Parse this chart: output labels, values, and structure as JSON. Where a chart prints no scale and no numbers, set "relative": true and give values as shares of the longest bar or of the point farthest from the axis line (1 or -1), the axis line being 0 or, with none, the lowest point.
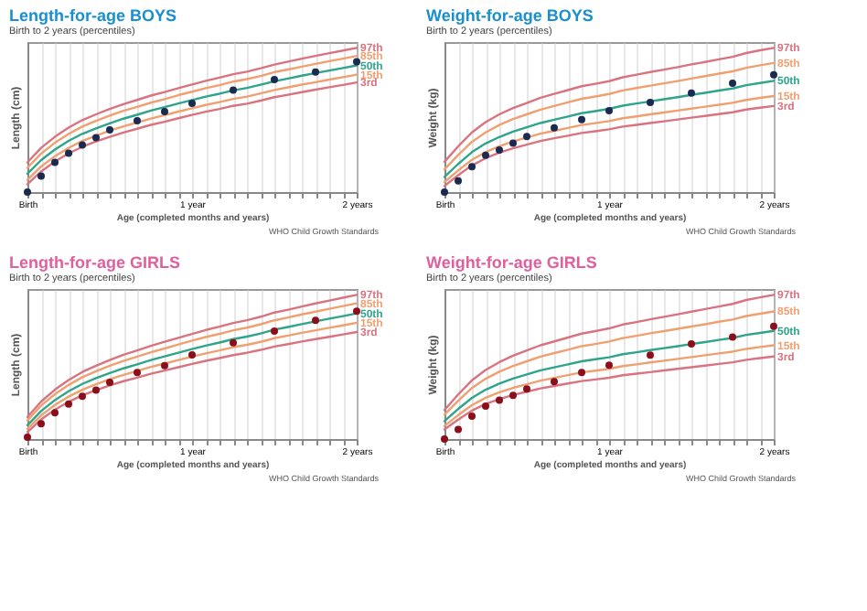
{
  "chart_data": [
    {
      "type": "line",
      "title": "Length-for-age BOYS",
      "subtitle": "Birth to 2 years (percentiles)",
      "xlabel": "Age (completed months and years)",
      "ylabel": "Length (cm)",
      "relative": true,
      "grid": "x",
      "annotations": [
        "WHO Child Growth Standards"
      ],
      "categories": [
        "Birth",
        null,
        null,
        null,
        null,
        null,
        null,
        null,
        null,
        null,
        null,
        null,
        "1 year",
        null,
        null,
        null,
        null,
        null,
        null,
        null,
        null,
        null,
        null,
        null,
        "2 years"
      ],
      "series": [
        {
          "name": "97th",
          "color": "#d9737f",
          "values": [
            0.206,
            0.307,
            0.383,
            0.447,
            0.499,
            0.539,
            0.577,
            0.61,
            0.639,
            0.669,
            0.694,
            0.721,
            0.746,
            0.771,
            0.793,
            0.817,
            0.835,
            0.858,
            0.884,
            0.904,
            0.925,
            0.944,
            0.963,
            0.981,
            1.0
          ]
        },
        {
          "name": "85th",
          "color": "#f0a070",
          "values": [
            0.168,
            0.267,
            0.342,
            0.403,
            0.454,
            0.494,
            0.53,
            0.563,
            0.591,
            0.62,
            0.645,
            0.672,
            0.696,
            0.721,
            0.741,
            0.766,
            0.783,
            0.805,
            0.832,
            0.85,
            0.87,
            0.889,
            0.908,
            0.925,
            0.944
          ]
        },
        {
          "name": "50th",
          "color": "#2ea58a",
          "values": [
            0.127,
            0.222,
            0.295,
            0.355,
            0.404,
            0.442,
            0.477,
            0.509,
            0.536,
            0.565,
            0.589,
            0.614,
            0.638,
            0.662,
            0.682,
            0.705,
            0.722,
            0.744,
            0.768,
            0.787,
            0.807,
            0.825,
            0.843,
            0.86,
            0.878
          ]
        },
        {
          "name": "15th",
          "color": "#f0a070",
          "values": [
            0.085,
            0.178,
            0.248,
            0.306,
            0.354,
            0.391,
            0.425,
            0.456,
            0.482,
            0.51,
            0.533,
            0.558,
            0.581,
            0.604,
            0.624,
            0.646,
            0.662,
            0.684,
            0.708,
            0.726,
            0.745,
            0.762,
            0.78,
            0.797,
            0.814
          ]
        },
        {
          "name": "3rd",
          "color": "#d9737f",
          "values": [
            0.054,
            0.143,
            0.212,
            0.268,
            0.314,
            0.351,
            0.383,
            0.413,
            0.439,
            0.466,
            0.488,
            0.512,
            0.535,
            0.557,
            0.576,
            0.598,
            0.613,
            0.634,
            0.658,
            0.675,
            0.693,
            0.71,
            0.727,
            0.743,
            0.76
          ]
        },
        {
          "type": "scatter",
          "marker": "circle",
          "color": "#1a2a50",
          "values": [
            0,
            0.111,
            0.206,
            0.27,
            0.327,
            0.377,
            0.431,
            null,
            0.494,
            null,
            0.558,
            null,
            0.615,
            null,
            null,
            0.707,
            null,
            null,
            0.78,
            null,
            null,
            0.833,
            null,
            null,
            0.903
          ]
        }
      ]
    },
    {
      "type": "line",
      "title": "Weight-for-age BOYS",
      "subtitle": "Birth to 2 years (percentiles)",
      "xlabel": "Age (completed months and years)",
      "ylabel": "Weight (kg)",
      "relative": true,
      "grid": "x",
      "annotations": [
        "WHO Child Growth Standards"
      ],
      "categories": [
        "Birth",
        null,
        null,
        null,
        null,
        null,
        null,
        null,
        null,
        null,
        null,
        null,
        "1 year",
        null,
        null,
        null,
        null,
        null,
        null,
        null,
        null,
        null,
        null,
        null,
        "2 years"
      ],
      "series": [
        {
          "name": "97th",
          "color": "#d9737f",
          "values": [
            0.21,
            0.317,
            0.414,
            0.485,
            0.539,
            0.583,
            0.618,
            0.654,
            0.681,
            0.707,
            0.734,
            0.751,
            0.769,
            0.796,
            0.814,
            0.832,
            0.849,
            0.866,
            0.885,
            0.902,
            0.92,
            0.938,
            0.964,
            0.983,
            1.0
          ]
        },
        {
          "name": "85th",
          "color": "#f0a070",
          "values": [
            0.158,
            0.258,
            0.348,
            0.414,
            0.465,
            0.506,
            0.539,
            0.572,
            0.597,
            0.622,
            0.647,
            0.663,
            0.68,
            0.705,
            0.721,
            0.738,
            0.754,
            0.77,
            0.787,
            0.804,
            0.821,
            0.837,
            0.862,
            0.879,
            0.895
          ]
        },
        {
          "name": "50th",
          "color": "#2ea58a",
          "values": [
            0.105,
            0.195,
            0.277,
            0.337,
            0.382,
            0.419,
            0.449,
            0.479,
            0.502,
            0.524,
            0.547,
            0.561,
            0.577,
            0.599,
            0.614,
            0.629,
            0.644,
            0.658,
            0.674,
            0.688,
            0.704,
            0.718,
            0.741,
            0.756,
            0.771
          ]
        },
        {
          "name": "15th",
          "color": "#f0a070",
          "values": [
            0.07,
            0.15,
            0.224,
            0.277,
            0.318,
            0.351,
            0.378,
            0.405,
            0.425,
            0.445,
            0.465,
            0.478,
            0.492,
            0.512,
            0.525,
            0.539,
            0.552,
            0.565,
            0.579,
            0.592,
            0.606,
            0.619,
            0.639,
            0.653,
            0.666
          ]
        },
        {
          "name": "3rd",
          "color": "#d9737f",
          "values": [
            0.042,
            0.117,
            0.185,
            0.235,
            0.273,
            0.304,
            0.329,
            0.354,
            0.373,
            0.391,
            0.41,
            0.422,
            0.435,
            0.454,
            0.466,
            0.479,
            0.491,
            0.503,
            0.516,
            0.528,
            0.541,
            0.553,
            0.572,
            0.585,
            0.597
          ]
        },
        {
          "type": "scatter",
          "marker": "circle",
          "color": "#1a2a50",
          "values": [
            0,
            0.077,
            0.176,
            0.256,
            0.291,
            0.34,
            0.386,
            null,
            0.445,
            null,
            0.502,
            null,
            0.565,
            null,
            null,
            0.621,
            null,
            null,
            0.687,
            null,
            null,
            0.755,
            null,
            null,
            0.814
          ]
        }
      ]
    },
    {
      "type": "line",
      "title": "Length-for-age GIRLS",
      "subtitle": "Birth to 2 years (percentiles)",
      "xlabel": "Age (completed months and years)",
      "ylabel": "Length (cm)",
      "relative": true,
      "grid": "x",
      "annotations": [
        "WHO Child Growth Standards"
      ],
      "categories": [
        "Birth",
        null,
        null,
        null,
        null,
        null,
        null,
        null,
        null,
        null,
        null,
        null,
        "1 year",
        null,
        null,
        null,
        null,
        null,
        null,
        null,
        null,
        null,
        null,
        null,
        "2 years"
      ],
      "series": [
        {
          "name": "97th",
          "color": "#d9737f",
          "values": [
            0.152,
            0.26,
            0.342,
            0.409,
            0.465,
            0.508,
            0.548,
            0.584,
            0.614,
            0.646,
            0.674,
            0.702,
            0.729,
            0.756,
            0.779,
            0.805,
            0.824,
            0.848,
            0.877,
            0.897,
            0.919,
            0.94,
            0.96,
            0.98,
            1.0
          ]
        },
        {
          "name": "85th",
          "color": "#f0a070",
          "values": [
            0.129,
            0.232,
            0.311,
            0.375,
            0.429,
            0.47,
            0.508,
            0.542,
            0.572,
            0.602,
            0.628,
            0.656,
            0.682,
            0.707,
            0.729,
            0.754,
            0.772,
            0.796,
            0.823,
            0.843,
            0.864,
            0.883,
            0.903,
            0.922,
            0.941
          ]
        },
        {
          "name": "50th",
          "color": "#2ea58a",
          "values": [
            0.096,
            0.194,
            0.27,
            0.331,
            0.382,
            0.422,
            0.458,
            0.49,
            0.518,
            0.548,
            0.573,
            0.599,
            0.624,
            0.648,
            0.669,
            0.693,
            0.71,
            0.732,
            0.759,
            0.777,
            0.797,
            0.816,
            0.835,
            0.852,
            0.871
          ]
        },
        {
          "name": "15th",
          "color": "#f0a070",
          "values": [
            0.071,
            0.164,
            0.236,
            0.294,
            0.342,
            0.38,
            0.414,
            0.445,
            0.472,
            0.5,
            0.523,
            0.548,
            0.572,
            0.594,
            0.614,
            0.637,
            0.653,
            0.674,
            0.699,
            0.717,
            0.736,
            0.754,
            0.771,
            0.788,
            0.806
          ]
        },
        {
          "name": "3rd",
          "color": "#d9737f",
          "values": [
            0.048,
            0.136,
            0.203,
            0.258,
            0.304,
            0.339,
            0.372,
            0.401,
            0.426,
            0.453,
            0.475,
            0.498,
            0.521,
            0.542,
            0.561,
            0.582,
            0.598,
            0.618,
            0.641,
            0.658,
            0.676,
            0.693,
            0.709,
            0.725,
            0.742
          ]
        },
        {
          "type": "scatter",
          "marker": "circle",
          "color": "#8b0f1a",
          "values": [
            0.013,
            0.107,
            0.183,
            0.242,
            0.297,
            0.339,
            0.393,
            null,
            0.461,
            null,
            0.509,
            null,
            0.584,
            null,
            null,
            0.668,
            null,
            null,
            0.748,
            null,
            null,
            0.823,
            null,
            null,
            0.887
          ]
        }
      ]
    },
    {
      "type": "line",
      "title": "Weight-for-age GIRLS",
      "subtitle": "Birth to 2 years (percentiles)",
      "xlabel": "Age (completed months and years)",
      "ylabel": "Weight (kg)",
      "relative": true,
      "grid": "x",
      "annotations": [
        "WHO Child Growth Standards"
      ],
      "categories": [
        "Birth",
        null,
        null,
        null,
        null,
        null,
        null,
        null,
        null,
        null,
        null,
        null,
        "1 year",
        null,
        null,
        null,
        null,
        null,
        null,
        null,
        null,
        null,
        null,
        null,
        "2 years"
      ],
      "series": [
        {
          "name": "97th",
          "color": "#d9737f",
          "values": [
            0.201,
            0.309,
            0.407,
            0.479,
            0.533,
            0.578,
            0.614,
            0.65,
            0.677,
            0.704,
            0.731,
            0.748,
            0.767,
            0.794,
            0.811,
            0.83,
            0.847,
            0.865,
            0.883,
            0.901,
            0.919,
            0.937,
            0.964,
            0.982,
            1.0
          ]
        },
        {
          "name": "85th",
          "color": "#f0a070",
          "values": [
            0.169,
            0.266,
            0.354,
            0.418,
            0.467,
            0.507,
            0.539,
            0.571,
            0.596,
            0.619,
            0.644,
            0.659,
            0.676,
            0.7,
            0.716,
            0.733,
            0.748,
            0.764,
            0.78,
            0.796,
            0.813,
            0.828,
            0.853,
            0.869,
            0.885
          ]
        },
        {
          "name": "50th",
          "color": "#2ea58a",
          "values": [
            0.124,
            0.209,
            0.285,
            0.342,
            0.384,
            0.419,
            0.448,
            0.476,
            0.497,
            0.518,
            0.539,
            0.553,
            0.567,
            0.588,
            0.602,
            0.617,
            0.63,
            0.644,
            0.659,
            0.672,
            0.687,
            0.701,
            0.722,
            0.736,
            0.75
          ]
        },
        {
          "name": "15th",
          "color": "#f0a070",
          "values": [
            0.091,
            0.166,
            0.235,
            0.286,
            0.324,
            0.355,
            0.38,
            0.405,
            0.424,
            0.443,
            0.462,
            0.474,
            0.487,
            0.506,
            0.518,
            0.531,
            0.543,
            0.556,
            0.568,
            0.581,
            0.594,
            0.606,
            0.625,
            0.638,
            0.65
          ]
        },
        {
          "name": "3rd",
          "color": "#d9737f",
          "values": [
            0.067,
            0.135,
            0.197,
            0.243,
            0.277,
            0.305,
            0.328,
            0.351,
            0.368,
            0.385,
            0.402,
            0.413,
            0.425,
            0.442,
            0.453,
            0.464,
            0.476,
            0.487,
            0.498,
            0.509,
            0.521,
            0.532,
            0.549,
            0.561,
            0.572
          ]
        },
        {
          "type": "scatter",
          "marker": "circle",
          "color": "#8b0f1a",
          "values": [
            0,
            0.067,
            0.158,
            0.229,
            0.269,
            0.303,
            0.347,
            null,
            0.398,
            null,
            0.461,
            null,
            0.512,
            null,
            null,
            0.582,
            null,
            null,
            0.659,
            null,
            null,
            0.707,
            null,
            null,
            0.781
          ]
        }
      ]
    }
  ]
}
